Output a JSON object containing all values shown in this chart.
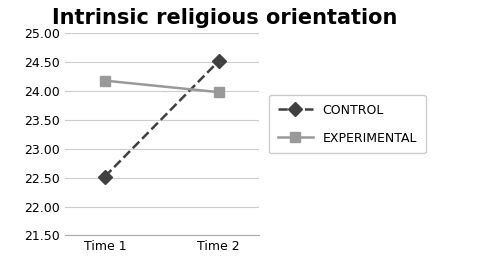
{
  "title": "Intrinsic religious orientation",
  "title_fontsize": 15,
  "title_fontweight": "bold",
  "x_labels": [
    "Time 1",
    "Time 2"
  ],
  "x_values": [
    1,
    2
  ],
  "control_values": [
    22.52,
    24.52
  ],
  "experimental_values": [
    24.18,
    23.98
  ],
  "control_color": "#404040",
  "experimental_color": "#999999",
  "ylim": [
    21.5,
    25.0
  ],
  "yticks": [
    21.5,
    22.0,
    22.5,
    23.0,
    23.5,
    24.0,
    24.5,
    25.0
  ],
  "control_label": "CONTROL",
  "experimental_label": "EXPERIMENTAL",
  "marker_control": "D",
  "marker_experimental": "s",
  "marker_size_control": 7,
  "marker_size_experimental": 7,
  "line_width": 1.8,
  "background_color": "#ffffff",
  "grid_color": "#cccccc",
  "tick_fontsize": 9,
  "legend_fontsize": 9
}
